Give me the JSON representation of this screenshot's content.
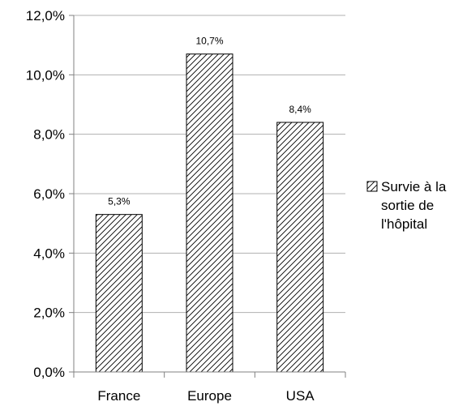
{
  "chart_data": {
    "type": "bar",
    "title": "",
    "xlabel": "",
    "ylabel": "",
    "categories": [
      "France",
      "Europe",
      "USA"
    ],
    "series": [
      {
        "name": "Survie à la sortie de l'hôpital",
        "values": [
          5.3,
          10.7,
          8.4
        ],
        "value_labels": [
          "5,3%",
          "10,7%",
          "8,4%"
        ],
        "fill": "diagonal-hatch"
      }
    ],
    "ylim": [
      0,
      12
    ],
    "y_ticks": [
      0,
      2,
      4,
      6,
      8,
      10,
      12
    ],
    "y_tick_labels": [
      "0,0%",
      "2,0%",
      "4,0%",
      "6,0%",
      "8,0%",
      "10,0%",
      "12,0%"
    ],
    "grid": true,
    "legend": {
      "position": "right",
      "lines": [
        "Survie à la",
        "sortie de",
        "l'hôpital"
      ]
    },
    "colors": {
      "gridline": "#b0b0b0",
      "axis": "#808080",
      "bar_stroke": "#000000",
      "hatch": "#000000"
    }
  }
}
